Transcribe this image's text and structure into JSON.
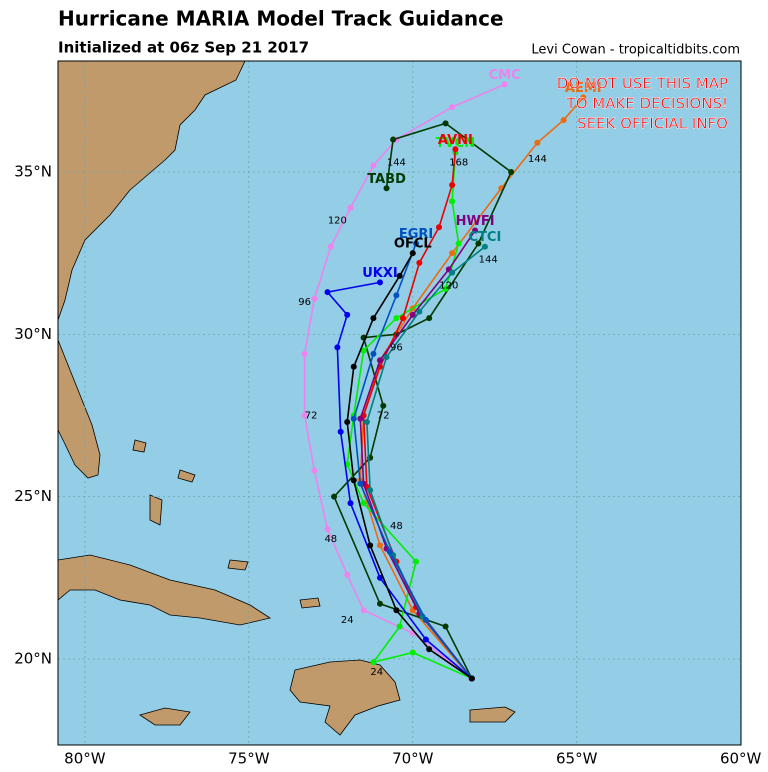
{
  "chart_data": {
    "type": "map",
    "title": "Hurricane MARIA Model Track Guidance",
    "subtitle": "Initialized at 06z Sep 21 2017",
    "credit": "Levi Cowan - tropicaltidbits.com",
    "warning": [
      "DO NOT USE THIS MAP",
      "TO MAKE DECISIONS!",
      "SEEK OFFICIAL INFO"
    ],
    "xlim": [
      -80.82,
      -59.99
    ],
    "ylim": [
      17.35,
      38.42
    ],
    "xticks": [
      {
        "value": -80,
        "label": "80°W"
      },
      {
        "value": -75,
        "label": "75°W"
      },
      {
        "value": -70,
        "label": "70°W"
      },
      {
        "value": -65,
        "label": "65°W"
      },
      {
        "value": -60,
        "label": "60°W"
      }
    ],
    "yticks": [
      {
        "value": 20,
        "label": "20°N"
      },
      {
        "value": 25,
        "label": "25°N"
      },
      {
        "value": 30,
        "label": "30°N"
      },
      {
        "value": 35,
        "label": "35°N"
      }
    ],
    "grid": true,
    "tracks": [
      {
        "name": "CMC",
        "color": "#ee82ee",
        "lon": [
          -68.2,
          -70.0,
          -71.5,
          -72.0,
          -72.6,
          -73.0,
          -73.3,
          -73.3,
          -73.0,
          -72.5,
          -71.9,
          -71.2,
          -70.5,
          -68.8,
          -67.2
        ],
        "lat": [
          19.4,
          20.8,
          21.5,
          22.6,
          24.0,
          25.8,
          27.5,
          29.4,
          31.1,
          32.7,
          33.9,
          35.2,
          36.0,
          37.0,
          37.7
        ]
      },
      {
        "name": "AEMI",
        "color": "#ee6a10",
        "lon": [
          -68.2,
          -70.0,
          -71.0,
          -71.6,
          -71.5,
          -71.0,
          -70.0,
          -68.8,
          -67.3,
          -66.2,
          -65.4,
          -64.8
        ],
        "lat": [
          19.4,
          21.5,
          23.5,
          25.5,
          27.5,
          29.2,
          30.8,
          32.5,
          34.5,
          35.9,
          36.6,
          37.3
        ]
      },
      {
        "name": "TABD",
        "color": "#003a00",
        "lon": [
          -68.2,
          -69.0,
          -71.0,
          -72.4,
          -71.3,
          -70.9,
          -71.5,
          -70.5,
          -69.5,
          -68.0,
          -67.0,
          -69.0,
          -70.6,
          -70.8
        ],
        "lat": [
          19.4,
          21.0,
          21.7,
          25.0,
          26.2,
          27.8,
          29.9,
          30.0,
          30.5,
          32.8,
          35.0,
          36.5,
          36.0,
          34.5
        ]
      },
      {
        "name": "TVCN",
        "color": "#00ee00",
        "lon": [
          -68.2,
          -70.0,
          -71.2,
          -70.4,
          -69.9,
          -71.5,
          -72.0,
          -71.8,
          -71.5,
          -70.5,
          -69.0,
          -68.6,
          -68.8,
          -68.7
        ],
        "lat": [
          19.4,
          20.2,
          19.9,
          21.0,
          23.0,
          24.8,
          26.0,
          27.5,
          29.5,
          30.5,
          31.4,
          32.8,
          34.1,
          35.6
        ]
      },
      {
        "name": "AVNI",
        "color": "#ee0000",
        "lon": [
          -68.2,
          -69.9,
          -70.5,
          -71.4,
          -71.5,
          -71.0,
          -70.3,
          -69.8,
          -69.2,
          -68.8,
          -68.7
        ],
        "lat": [
          19.4,
          21.6,
          23.0,
          25.3,
          27.5,
          29.0,
          30.5,
          32.2,
          33.3,
          34.6,
          35.7
        ]
      },
      {
        "name": "HWFI",
        "color": "#800080",
        "lon": [
          -68.2,
          -69.8,
          -70.8,
          -71.5,
          -71.6,
          -71.0,
          -70.0,
          -68.9,
          -68.1
        ],
        "lat": [
          19.4,
          21.4,
          23.4,
          25.4,
          27.4,
          29.2,
          30.6,
          32.0,
          33.2
        ]
      },
      {
        "name": "CTCI",
        "color": "#008080",
        "lon": [
          -68.2,
          -69.7,
          -70.6,
          -71.3,
          -71.4,
          -70.8,
          -69.8,
          -68.8,
          -67.8
        ],
        "lat": [
          19.4,
          21.3,
          23.2,
          25.2,
          27.3,
          29.3,
          30.7,
          31.9,
          32.7
        ]
      },
      {
        "name": "EGRI",
        "color": "#0050c0",
        "lon": [
          -68.2,
          -69.6,
          -70.7,
          -71.6,
          -71.8,
          -71.2,
          -70.5,
          -69.9
        ],
        "lat": [
          19.4,
          21.2,
          23.3,
          25.4,
          27.4,
          29.4,
          31.2,
          32.8
        ]
      },
      {
        "name": "UKXI",
        "color": "#0000ee",
        "lon": [
          -68.2,
          -69.6,
          -71.0,
          -71.9,
          -72.2,
          -72.3,
          -72.0,
          -72.6,
          -71.0
        ],
        "lat": [
          19.4,
          20.6,
          22.5,
          24.8,
          27.0,
          29.6,
          30.6,
          31.3,
          31.6
        ]
      },
      {
        "name": "OFCL",
        "color": "#000000",
        "lon": [
          -68.2,
          -69.5,
          -70.5,
          -71.3,
          -71.8,
          -72.0,
          -71.8,
          -71.2,
          -70.4,
          -70.0
        ],
        "lat": [
          19.4,
          20.3,
          21.5,
          23.5,
          25.5,
          27.3,
          29.0,
          30.5,
          31.8,
          32.5
        ]
      }
    ],
    "hour_labels": [
      {
        "text": "24",
        "lon": -71.1,
        "lat": 19.6
      },
      {
        "text": "24",
        "lon": -72.0,
        "lat": 21.2
      },
      {
        "text": "48",
        "lon": -72.5,
        "lat": 23.7
      },
      {
        "text": "48",
        "lon": -70.5,
        "lat": 24.1
      },
      {
        "text": "72",
        "lon": -73.1,
        "lat": 27.5
      },
      {
        "text": "72",
        "lon": -70.9,
        "lat": 27.5
      },
      {
        "text": "96",
        "lon": -73.3,
        "lat": 31.0
      },
      {
        "text": "96",
        "lon": -70.5,
        "lat": 29.6
      },
      {
        "text": "120",
        "lon": -72.3,
        "lat": 33.5
      },
      {
        "text": "120",
        "lon": -68.9,
        "lat": 31.5
      },
      {
        "text": "144",
        "lon": -70.5,
        "lat": 35.3
      },
      {
        "text": "144",
        "lon": -66.2,
        "lat": 35.4
      },
      {
        "text": "144",
        "lon": -67.7,
        "lat": 32.3
      },
      {
        "text": "168",
        "lon": -68.6,
        "lat": 35.3
      }
    ]
  }
}
